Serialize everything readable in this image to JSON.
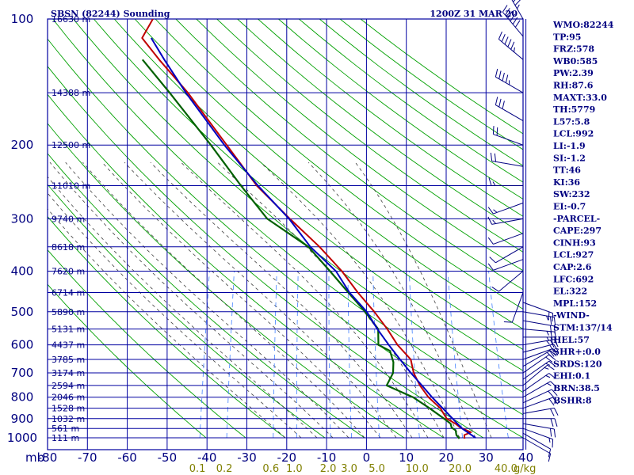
{
  "title_left": "SBSN (82244) Sounding",
  "title_right": "1200Z 31 MAR 20",
  "colors": {
    "grid": "#0000a0",
    "dry_adiabat": "#00a000",
    "moist_adiabat": "#404040",
    "mixing_ratio": "#4080ff",
    "temperature": "#c00000",
    "dewpoint": "#006000",
    "parcel": "#0000c0",
    "wind": "#000080",
    "text": "#000080",
    "mix_text": "#808000"
  },
  "axis_y_unit": "mb",
  "axis_x_unit": "g/kg",
  "indices": [
    "WMO:82244",
    "TP:95",
    "FRZ:578",
    "WB0:585",
    "PW:2.39",
    "RH:87.6",
    "MAXT:33.0",
    "TH:5779",
    "L57:5.8",
    "LCL:992",
    "LI:-1.9",
    "SI:-1.2",
    "TT:46",
    "KI:36",
    "SW:232",
    "EI:-0.7",
    "-PARCEL-",
    "CAPE:297",
    "CINH:93",
    "LCL:927",
    "CAP:2.6",
    "LFC:692",
    "EL:322",
    "MPL:152",
    "-WIND-",
    "STM:137/14",
    "HEL:57",
    "SHR+:0.0",
    "SRDS:120",
    "EHI:0.1",
    "BRN:38.5",
    "BSHR:8"
  ],
  "chart_data": {
    "type": "line",
    "diagram": "skew-T log-P",
    "pressure_levels": [
      100,
      200,
      300,
      400,
      500,
      600,
      700,
      800,
      900,
      1000
    ],
    "temperature_ticks": [
      "-80",
      "-70",
      "-60",
      "-50",
      "-40",
      "-30",
      "-20",
      "-10",
      "0",
      "10",
      "20",
      "30",
      "40"
    ],
    "temperature_tick_values": [
      -80,
      -70,
      -60,
      -50,
      -40,
      -30,
      -20,
      -10,
      0,
      10,
      20,
      30,
      40
    ],
    "xlim": [
      -80,
      40
    ],
    "ylim": [
      100,
      1000
    ],
    "y_scale": "log",
    "height_labels": [
      {
        "p": 100,
        "text": "16630 m"
      },
      {
        "p": 150,
        "text": "14388 m"
      },
      {
        "p": 200,
        "text": "12500 m"
      },
      {
        "p": 250,
        "text": "11010 m"
      },
      {
        "p": 300,
        "text": "9740 m"
      },
      {
        "p": 350,
        "text": "8618 m"
      },
      {
        "p": 400,
        "text": "7620 m"
      },
      {
        "p": 450,
        "text": "6714 m"
      },
      {
        "p": 500,
        "text": "5890 m"
      },
      {
        "p": 550,
        "text": "5131 m"
      },
      {
        "p": 600,
        "text": "4437 m"
      },
      {
        "p": 650,
        "text": "3785 m"
      },
      {
        "p": 700,
        "text": "3174 m"
      },
      {
        "p": 750,
        "text": "2594 m"
      },
      {
        "p": 800,
        "text": "2046 m"
      },
      {
        "p": 850,
        "text": "1528 m"
      },
      {
        "p": 900,
        "text": "1032 m"
      },
      {
        "p": 950,
        "text": "561 m"
      },
      {
        "p": 1000,
        "text": "111 m"
      }
    ],
    "mixing_ratio_labels": [
      {
        "w": 0.1,
        "text": "0.1"
      },
      {
        "w": 0.2,
        "text": "0.2"
      },
      {
        "w": 0.6,
        "text": "0.6"
      },
      {
        "w": 1.0,
        "text": "1.0"
      },
      {
        "w": 2.0,
        "text": "2.0"
      },
      {
        "w": 3.0,
        "text": "3.0"
      },
      {
        "w": 5.0,
        "text": "5.0"
      },
      {
        "w": 10.0,
        "text": "10.0"
      },
      {
        "w": 20.0,
        "text": "20.0"
      },
      {
        "w": 40.0,
        "text": "40.0"
      }
    ],
    "series": [
      {
        "key": "temperature",
        "points": [
          [
            1005,
            25.3
          ],
          [
            985,
            25.0
          ],
          [
            970,
            26.5
          ],
          [
            945,
            23.5
          ],
          [
            925,
            22.0
          ],
          [
            900,
            19.5
          ],
          [
            850,
            17.2
          ],
          [
            800,
            13.5
          ],
          [
            750,
            10.6
          ],
          [
            700,
            8.2
          ],
          [
            650,
            6.6
          ],
          [
            600,
            2.3
          ],
          [
            550,
            -1.3
          ],
          [
            500,
            -5.7
          ],
          [
            450,
            -11.1
          ],
          [
            400,
            -16.5
          ],
          [
            350,
            -23.7
          ],
          [
            300,
            -33.0
          ],
          [
            250,
            -43.5
          ],
          [
            200,
            -53.7
          ],
          [
            150,
            -66.9
          ],
          [
            125,
            -76.3
          ],
          [
            111,
            -82.0
          ],
          [
            100,
            -80.5
          ]
        ]
      },
      {
        "key": "dewpoint",
        "points": [
          [
            1005,
            24.0
          ],
          [
            985,
            23.0
          ],
          [
            960,
            22.5
          ],
          [
            945,
            21.3
          ],
          [
            925,
            20.8
          ],
          [
            900,
            18.8
          ],
          [
            850,
            14.5
          ],
          [
            800,
            9.6
          ],
          [
            750,
            2.2
          ],
          [
            700,
            3.0
          ],
          [
            660,
            2.4
          ],
          [
            620,
            0.8
          ],
          [
            600,
            -2.5
          ],
          [
            550,
            -3.6
          ],
          [
            500,
            -8.0
          ],
          [
            450,
            -13.5
          ],
          [
            400,
            -19.5
          ],
          [
            350,
            -26.5
          ],
          [
            300,
            -38.7
          ],
          [
            250,
            -47.5
          ],
          [
            200,
            -57.7
          ],
          [
            150,
            -71.5
          ],
          [
            125,
            -80.5
          ]
        ]
      },
      {
        "key": "parcel",
        "points": [
          [
            1000,
            28.0
          ],
          [
            950,
            24.0
          ],
          [
            925,
            22.5
          ],
          [
            900,
            21.0
          ],
          [
            850,
            17.8
          ],
          [
            800,
            14.4
          ],
          [
            750,
            11.1
          ],
          [
            700,
            7.5
          ],
          [
            650,
            3.9
          ],
          [
            600,
            0.1
          ],
          [
            550,
            -3.8
          ],
          [
            500,
            -7.6
          ],
          [
            450,
            -13.2
          ],
          [
            400,
            -18.0
          ],
          [
            350,
            -26.0
          ],
          [
            300,
            -33.2
          ],
          [
            250,
            -43.2
          ],
          [
            200,
            -54.3
          ],
          [
            150,
            -67.4
          ],
          [
            125,
            -75.0
          ],
          [
            111,
            -79.7
          ]
        ]
      }
    ],
    "wind_barbs": [
      {
        "p": 100,
        "dir": 330,
        "spd": 55
      },
      {
        "p": 110,
        "dir": 320,
        "spd": 60
      },
      {
        "p": 125,
        "dir": 310,
        "spd": 55
      },
      {
        "p": 150,
        "dir": 300,
        "spd": 45
      },
      {
        "p": 175,
        "dir": 300,
        "spd": 30
      },
      {
        "p": 200,
        "dir": 290,
        "spd": 20
      },
      {
        "p": 225,
        "dir": 280,
        "spd": 20
      },
      {
        "p": 250,
        "dir": 270,
        "spd": 15
      },
      {
        "p": 275,
        "dir": 250,
        "spd": 15
      },
      {
        "p": 300,
        "dir": 260,
        "spd": 15
      },
      {
        "p": 325,
        "dir": 250,
        "spd": 10
      },
      {
        "p": 350,
        "dir": 240,
        "spd": 10
      },
      {
        "p": 375,
        "dir": 250,
        "spd": 10
      },
      {
        "p": 400,
        "dir": 230,
        "spd": 10
      },
      {
        "p": 450,
        "dir": 200,
        "spd": 10
      },
      {
        "p": 475,
        "dir": 110,
        "spd": 20
      },
      {
        "p": 500,
        "dir": 100,
        "spd": 25
      },
      {
        "p": 525,
        "dir": 100,
        "spd": 20
      },
      {
        "p": 550,
        "dir": 95,
        "spd": 25
      },
      {
        "p": 575,
        "dir": 90,
        "spd": 25
      },
      {
        "p": 600,
        "dir": 80,
        "spd": 25
      },
      {
        "p": 625,
        "dir": 75,
        "spd": 20
      },
      {
        "p": 650,
        "dir": 70,
        "spd": 20
      },
      {
        "p": 675,
        "dir": 60,
        "spd": 20
      },
      {
        "p": 700,
        "dir": 55,
        "spd": 20
      },
      {
        "p": 725,
        "dir": 55,
        "spd": 15
      },
      {
        "p": 750,
        "dir": 50,
        "spd": 15
      },
      {
        "p": 775,
        "dir": 55,
        "spd": 15
      },
      {
        "p": 800,
        "dir": 60,
        "spd": 15
      },
      {
        "p": 825,
        "dir": 65,
        "spd": 20
      },
      {
        "p": 850,
        "dir": 70,
        "spd": 20
      },
      {
        "p": 875,
        "dir": 80,
        "spd": 20
      },
      {
        "p": 900,
        "dir": 90,
        "spd": 20
      },
      {
        "p": 925,
        "dir": 100,
        "spd": 20
      },
      {
        "p": 950,
        "dir": 110,
        "spd": 15
      },
      {
        "p": 975,
        "dir": 120,
        "spd": 10
      },
      {
        "p": 1000,
        "dir": 120,
        "spd": 10
      }
    ]
  }
}
